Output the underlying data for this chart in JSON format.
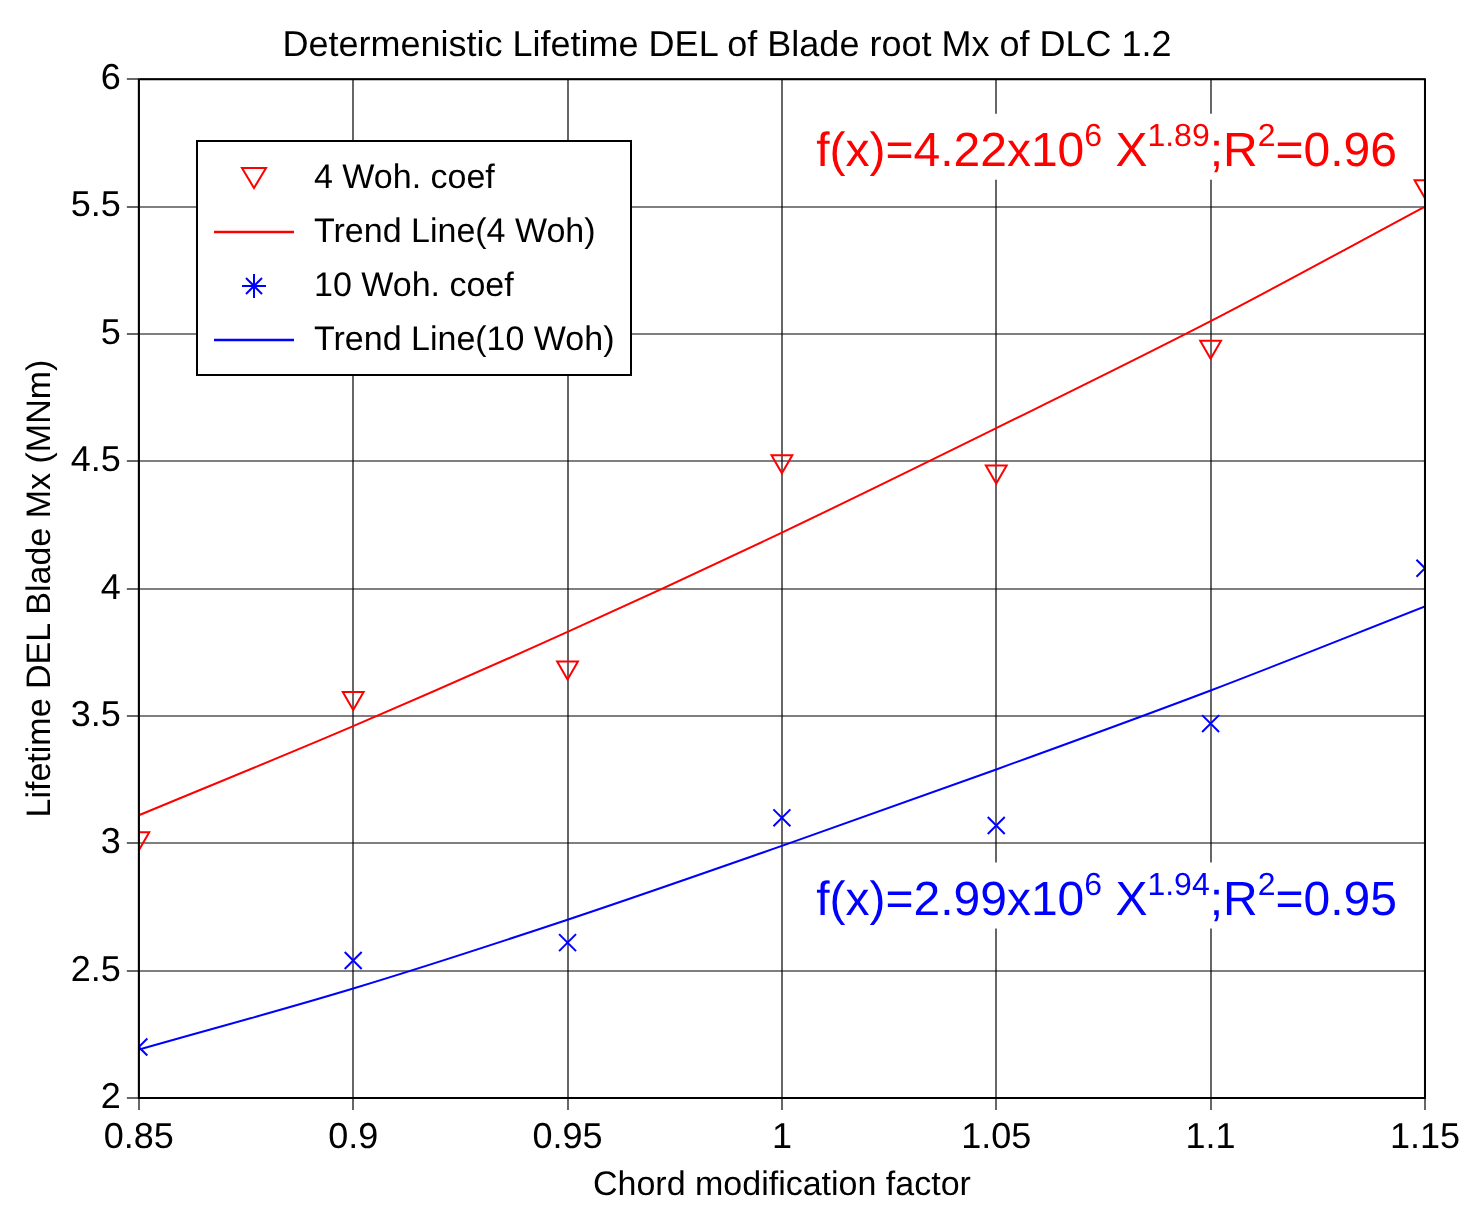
{
  "chart_data": {
    "type": "scatter",
    "title": "Determenistic Lifetime DEL of Blade root Mx of DLC 1.2",
    "xlabel": "Chord modification factor",
    "ylabel": "Lifetime DEL Blade Mx (MNm)",
    "x": [
      0.85,
      0.9,
      0.95,
      1,
      1.05,
      1.1,
      1.15
    ],
    "series": [
      {
        "name": "4 Woh. coef",
        "color": "#ff0000",
        "marker": "triangle",
        "values": [
          3.02,
          3.57,
          3.69,
          4.5,
          4.46,
          4.95,
          5.58
        ]
      },
      {
        "name": "Trend Line(4 Woh)",
        "type": "line",
        "color": "#ff0000",
        "marker": "none",
        "line_style": "solid",
        "values": [
          3.11,
          3.46,
          3.83,
          4.22,
          4.63,
          5.05,
          5.5
        ]
      },
      {
        "name": "10 Woh. coef",
        "color": "#0000ff",
        "marker": "cross",
        "values": [
          2.2,
          2.54,
          2.61,
          3.1,
          3.07,
          3.47,
          4.08
        ]
      },
      {
        "name": "Trend Line(10 Woh)",
        "type": "line",
        "color": "#0000ff",
        "marker": "none",
        "line_style": "solid",
        "values": [
          2.19,
          2.43,
          2.7,
          2.99,
          3.29,
          3.6,
          3.93
        ]
      }
    ],
    "annotations": [
      "f(x)=4.22x10$^{6}$ X$^{1.89}$;R$^{2}$=0.96",
      "f(x)=2.99x10$^{6}$ X$^{1.94}$;R$^{2}$=0.95"
    ],
    "xlim": [
      0.85,
      1.15
    ],
    "xticks": [
      0.85,
      0.9,
      0.95,
      1,
      1.05,
      1.1,
      1.15
    ],
    "ylim": [
      2,
      6
    ],
    "yticks": [
      2,
      2.5,
      3,
      3.5,
      4,
      4.5,
      5,
      5.5,
      6
    ],
    "grid": true,
    "legend": "top left"
  }
}
